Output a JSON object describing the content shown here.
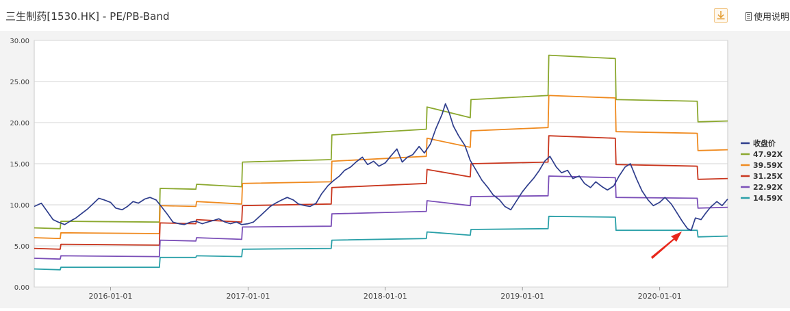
{
  "header": {
    "title": "三生制药[1530.HK] - PE/PB-Band",
    "download_icon": "download-icon",
    "help_icon": "document-icon",
    "help_label": "使用说明"
  },
  "chart_data": {
    "type": "line",
    "title": "",
    "xlabel": "",
    "ylabel": "",
    "ylim": [
      0,
      30
    ],
    "yticks": [
      "0.00",
      "5.00",
      "10.00",
      "15.00",
      "20.00",
      "25.00",
      "30.00"
    ],
    "xlim": [
      "2015-06-12",
      "2020-06-30"
    ],
    "xticks": [
      "2016-01-01",
      "2017-01-01",
      "2018-01-01",
      "2019-01-01",
      "2020-01-01"
    ],
    "grid": "horizontal",
    "legend_position": "right",
    "annotation": "red arrow pointing to the early-2020 price low",
    "series": [
      {
        "name": "收盘价",
        "color": "#2e3d8c",
        "points": [
          [
            "2015-06-12",
            9.8
          ],
          [
            "2015-07-01",
            10.2
          ],
          [
            "2015-07-15",
            9.3
          ],
          [
            "2015-08-01",
            8.2
          ],
          [
            "2015-08-15",
            7.9
          ],
          [
            "2015-09-01",
            7.6
          ],
          [
            "2015-09-15",
            8.0
          ],
          [
            "2015-10-01",
            8.4
          ],
          [
            "2015-10-15",
            8.9
          ],
          [
            "2015-11-01",
            9.5
          ],
          [
            "2015-11-15",
            10.1
          ],
          [
            "2015-12-01",
            10.8
          ],
          [
            "2015-12-15",
            10.6
          ],
          [
            "2016-01-01",
            10.3
          ],
          [
            "2016-01-15",
            9.6
          ],
          [
            "2016-02-01",
            9.4
          ],
          [
            "2016-02-15",
            9.8
          ],
          [
            "2016-03-01",
            10.4
          ],
          [
            "2016-03-15",
            10.2
          ],
          [
            "2016-04-01",
            10.7
          ],
          [
            "2016-04-15",
            10.9
          ],
          [
            "2016-05-01",
            10.6
          ],
          [
            "2016-05-15",
            9.8
          ],
          [
            "2016-06-01",
            8.8
          ],
          [
            "2016-06-15",
            7.9
          ],
          [
            "2016-07-01",
            7.7
          ],
          [
            "2016-07-15",
            7.6
          ],
          [
            "2016-08-01",
            7.9
          ],
          [
            "2016-08-15",
            8.0
          ],
          [
            "2016-09-01",
            7.7
          ],
          [
            "2016-09-15",
            7.9
          ],
          [
            "2016-10-01",
            8.1
          ],
          [
            "2016-10-15",
            8.3
          ],
          [
            "2016-11-01",
            7.9
          ],
          [
            "2016-11-15",
            7.7
          ],
          [
            "2016-12-01",
            7.9
          ],
          [
            "2016-12-15",
            7.6
          ],
          [
            "2017-01-01",
            7.7
          ],
          [
            "2017-01-15",
            7.9
          ],
          [
            "2017-02-01",
            8.6
          ],
          [
            "2017-02-15",
            9.2
          ],
          [
            "2017-03-01",
            9.8
          ],
          [
            "2017-03-15",
            10.2
          ],
          [
            "2017-04-01",
            10.6
          ],
          [
            "2017-04-15",
            10.9
          ],
          [
            "2017-05-01",
            10.6
          ],
          [
            "2017-05-15",
            10.1
          ],
          [
            "2017-06-01",
            9.9
          ],
          [
            "2017-06-15",
            9.8
          ],
          [
            "2017-07-01",
            10.2
          ],
          [
            "2017-07-15",
            11.3
          ],
          [
            "2017-08-01",
            12.3
          ],
          [
            "2017-08-15",
            12.9
          ],
          [
            "2017-09-01",
            13.5
          ],
          [
            "2017-09-15",
            14.2
          ],
          [
            "2017-10-01",
            14.6
          ],
          [
            "2017-10-15",
            15.2
          ],
          [
            "2017-11-01",
            15.8
          ],
          [
            "2017-11-15",
            14.9
          ],
          [
            "2017-12-01",
            15.3
          ],
          [
            "2017-12-15",
            14.7
          ],
          [
            "2018-01-01",
            15.1
          ],
          [
            "2018-01-15",
            15.9
          ],
          [
            "2018-02-01",
            16.8
          ],
          [
            "2018-02-15",
            15.2
          ],
          [
            "2018-03-01",
            15.8
          ],
          [
            "2018-03-15",
            16.1
          ],
          [
            "2018-04-01",
            17.1
          ],
          [
            "2018-04-15",
            16.3
          ],
          [
            "2018-05-01",
            17.4
          ],
          [
            "2018-05-15",
            19.2
          ],
          [
            "2018-06-01",
            21.0
          ],
          [
            "2018-06-10",
            22.3
          ],
          [
            "2018-06-20",
            21.2
          ],
          [
            "2018-07-01",
            19.6
          ],
          [
            "2018-07-15",
            18.4
          ],
          [
            "2018-08-01",
            17.2
          ],
          [
            "2018-08-15",
            15.4
          ],
          [
            "2018-09-01",
            14.1
          ],
          [
            "2018-09-15",
            13.0
          ],
          [
            "2018-10-01",
            12.1
          ],
          [
            "2018-10-15",
            11.2
          ],
          [
            "2018-11-01",
            10.6
          ],
          [
            "2018-11-15",
            9.8
          ],
          [
            "2018-12-01",
            9.4
          ],
          [
            "2018-12-15",
            10.4
          ],
          [
            "2019-01-01",
            11.6
          ],
          [
            "2019-01-15",
            12.4
          ],
          [
            "2019-02-01",
            13.3
          ],
          [
            "2019-02-15",
            14.2
          ],
          [
            "2019-03-01",
            15.3
          ],
          [
            "2019-03-15",
            15.9
          ],
          [
            "2019-04-01",
            14.6
          ],
          [
            "2019-04-15",
            13.9
          ],
          [
            "2019-05-01",
            14.2
          ],
          [
            "2019-05-15",
            13.2
          ],
          [
            "2019-06-01",
            13.5
          ],
          [
            "2019-06-15",
            12.6
          ],
          [
            "2019-07-01",
            12.1
          ],
          [
            "2019-07-15",
            12.8
          ],
          [
            "2019-08-01",
            12.2
          ],
          [
            "2019-08-15",
            11.8
          ],
          [
            "2019-09-01",
            12.3
          ],
          [
            "2019-09-15",
            13.5
          ],
          [
            "2019-10-01",
            14.6
          ],
          [
            "2019-10-15",
            15.0
          ],
          [
            "2019-11-01",
            13.1
          ],
          [
            "2019-11-15",
            11.7
          ],
          [
            "2019-12-01",
            10.6
          ],
          [
            "2019-12-15",
            9.9
          ],
          [
            "2020-01-01",
            10.3
          ],
          [
            "2020-01-15",
            10.9
          ],
          [
            "2020-02-01",
            10.1
          ],
          [
            "2020-02-15",
            9.1
          ],
          [
            "2020-03-01",
            8.0
          ],
          [
            "2020-03-15",
            7.1
          ],
          [
            "2020-03-25",
            6.9
          ],
          [
            "2020-04-05",
            8.4
          ],
          [
            "2020-04-20",
            8.2
          ],
          [
            "2020-05-01",
            8.9
          ],
          [
            "2020-05-15",
            9.7
          ],
          [
            "2020-06-01",
            10.4
          ],
          [
            "2020-06-15",
            9.9
          ],
          [
            "2020-06-30",
            10.7
          ]
        ]
      },
      {
        "name": "47.92X",
        "color": "#8ba82e",
        "points": [
          [
            "2015-06-12",
            7.2
          ],
          [
            "2015-08-20",
            7.1
          ],
          [
            "2015-08-22",
            8.0
          ],
          [
            "2016-05-10",
            7.9
          ],
          [
            "2016-05-12",
            12.0
          ],
          [
            "2016-08-15",
            11.9
          ],
          [
            "2016-08-17",
            12.5
          ],
          [
            "2016-12-15",
            12.2
          ],
          [
            "2016-12-17",
            15.2
          ],
          [
            "2017-08-10",
            15.5
          ],
          [
            "2017-08-12",
            18.5
          ],
          [
            "2018-04-20",
            19.2
          ],
          [
            "2018-04-22",
            21.9
          ],
          [
            "2018-08-15",
            20.6
          ],
          [
            "2018-08-17",
            22.8
          ],
          [
            "2019-03-10",
            23.3
          ],
          [
            "2019-03-12",
            28.2
          ],
          [
            "2019-09-05",
            27.8
          ],
          [
            "2019-09-07",
            22.8
          ],
          [
            "2020-04-10",
            22.6
          ],
          [
            "2020-04-12",
            20.1
          ],
          [
            "2020-06-30",
            20.2
          ]
        ]
      },
      {
        "name": "39.59X",
        "color": "#ef8a1f",
        "points": [
          [
            "2015-06-12",
            6.0
          ],
          [
            "2015-08-20",
            5.9
          ],
          [
            "2015-08-22",
            6.6
          ],
          [
            "2016-05-10",
            6.5
          ],
          [
            "2016-05-12",
            9.9
          ],
          [
            "2016-08-15",
            9.8
          ],
          [
            "2016-08-17",
            10.4
          ],
          [
            "2016-12-15",
            10.1
          ],
          [
            "2016-12-17",
            12.6
          ],
          [
            "2017-08-10",
            12.8
          ],
          [
            "2017-08-12",
            15.3
          ],
          [
            "2018-04-20",
            15.9
          ],
          [
            "2018-04-22",
            18.1
          ],
          [
            "2018-08-15",
            17.0
          ],
          [
            "2018-08-17",
            19.0
          ],
          [
            "2019-03-10",
            19.4
          ],
          [
            "2019-03-12",
            23.3
          ],
          [
            "2019-09-05",
            23.0
          ],
          [
            "2019-09-07",
            18.9
          ],
          [
            "2020-04-10",
            18.7
          ],
          [
            "2020-04-12",
            16.6
          ],
          [
            "2020-06-30",
            16.7
          ]
        ]
      },
      {
        "name": "31.25X",
        "color": "#c9361e",
        "points": [
          [
            "2015-06-12",
            4.7
          ],
          [
            "2015-08-20",
            4.6
          ],
          [
            "2015-08-22",
            5.2
          ],
          [
            "2016-05-10",
            5.1
          ],
          [
            "2016-05-12",
            7.8
          ],
          [
            "2016-08-15",
            7.7
          ],
          [
            "2016-08-17",
            8.2
          ],
          [
            "2016-12-15",
            7.9
          ],
          [
            "2016-12-17",
            9.9
          ],
          [
            "2017-08-10",
            10.1
          ],
          [
            "2017-08-12",
            12.1
          ],
          [
            "2018-04-20",
            12.6
          ],
          [
            "2018-04-22",
            14.3
          ],
          [
            "2018-08-15",
            13.4
          ],
          [
            "2018-08-17",
            15.0
          ],
          [
            "2019-03-10",
            15.2
          ],
          [
            "2019-03-12",
            18.4
          ],
          [
            "2019-09-05",
            18.1
          ],
          [
            "2019-09-07",
            14.9
          ],
          [
            "2020-04-10",
            14.7
          ],
          [
            "2020-04-12",
            13.1
          ],
          [
            "2020-06-30",
            13.2
          ]
        ]
      },
      {
        "name": "22.92X",
        "color": "#7b4fb8",
        "points": [
          [
            "2015-06-12",
            3.5
          ],
          [
            "2015-08-20",
            3.4
          ],
          [
            "2015-08-22",
            3.8
          ],
          [
            "2016-05-10",
            3.7
          ],
          [
            "2016-05-12",
            5.7
          ],
          [
            "2016-08-15",
            5.6
          ],
          [
            "2016-08-17",
            6.0
          ],
          [
            "2016-12-15",
            5.8
          ],
          [
            "2016-12-17",
            7.3
          ],
          [
            "2017-08-10",
            7.4
          ],
          [
            "2017-08-12",
            8.9
          ],
          [
            "2018-04-20",
            9.2
          ],
          [
            "2018-04-22",
            10.5
          ],
          [
            "2018-08-15",
            9.9
          ],
          [
            "2018-08-17",
            11.0
          ],
          [
            "2019-03-10",
            11.1
          ],
          [
            "2019-03-12",
            13.5
          ],
          [
            "2019-09-05",
            13.3
          ],
          [
            "2019-09-07",
            10.9
          ],
          [
            "2020-04-10",
            10.8
          ],
          [
            "2020-04-12",
            9.6
          ],
          [
            "2020-06-30",
            9.7
          ]
        ]
      },
      {
        "name": "14.59X",
        "color": "#2aa0a8",
        "points": [
          [
            "2015-06-12",
            2.2
          ],
          [
            "2015-08-20",
            2.1
          ],
          [
            "2015-08-22",
            2.4
          ],
          [
            "2016-05-10",
            2.4
          ],
          [
            "2016-05-12",
            3.6
          ],
          [
            "2016-08-15",
            3.6
          ],
          [
            "2016-08-17",
            3.8
          ],
          [
            "2016-12-15",
            3.7
          ],
          [
            "2016-12-17",
            4.6
          ],
          [
            "2017-08-10",
            4.7
          ],
          [
            "2017-08-12",
            5.7
          ],
          [
            "2018-04-20",
            5.9
          ],
          [
            "2018-04-22",
            6.7
          ],
          [
            "2018-08-15",
            6.3
          ],
          [
            "2018-08-17",
            7.0
          ],
          [
            "2019-03-10",
            7.1
          ],
          [
            "2019-03-12",
            8.6
          ],
          [
            "2019-09-05",
            8.5
          ],
          [
            "2019-09-07",
            6.9
          ],
          [
            "2020-04-10",
            6.9
          ],
          [
            "2020-04-12",
            6.1
          ],
          [
            "2020-06-30",
            6.2
          ]
        ]
      }
    ]
  }
}
